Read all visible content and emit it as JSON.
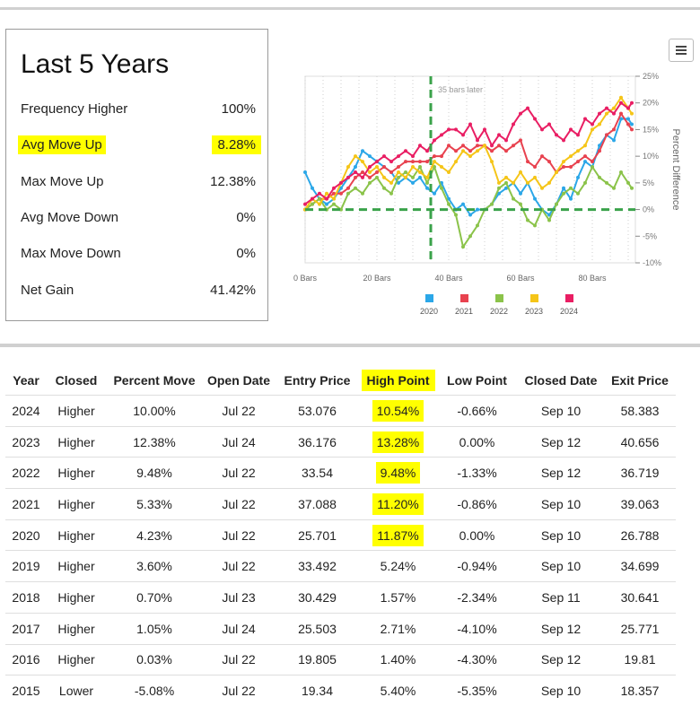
{
  "summary": {
    "title": "Last 5 Years",
    "rows": [
      {
        "label": "Frequency Higher",
        "value": "100%"
      },
      {
        "label": "Avg Move Up",
        "value": "8.28%"
      },
      {
        "label": "Max Move Up",
        "value": "12.38%"
      },
      {
        "label": "Avg Move Down",
        "value": "0%"
      },
      {
        "label": "Max Move Down",
        "value": "0%"
      },
      {
        "label": "Net Gain",
        "value": "41.42%"
      }
    ]
  },
  "menu": {
    "icon": "hamburger-menu-icon"
  },
  "chart_data": {
    "type": "line",
    "annotation": "35 bars later",
    "annotation_x": 35,
    "x_ticks": [
      {
        "v": 0,
        "label": "0 Bars"
      },
      {
        "v": 20,
        "label": "20 Bars"
      },
      {
        "v": 40,
        "label": "40 Bars"
      },
      {
        "v": 60,
        "label": "60 Bars"
      },
      {
        "v": 80,
        "label": "80 Bars"
      }
    ],
    "y_ticks": [
      {
        "v": 25,
        "label": "25%"
      },
      {
        "v": 20,
        "label": "20%"
      },
      {
        "v": 15,
        "label": "15%"
      },
      {
        "v": 10,
        "label": "10%"
      },
      {
        "v": 5,
        "label": "5%"
      },
      {
        "v": 0,
        "label": "0%"
      },
      {
        "v": -5,
        "label": "-5%"
      },
      {
        "v": -10,
        "label": "-10%"
      }
    ],
    "xlim": [
      0,
      92
    ],
    "ylim": [
      -10,
      25
    ],
    "ylabel": "Percent Difference",
    "grid": true,
    "legend_position": "bottom",
    "series": [
      {
        "name": "2020",
        "color": "#2ba7e8",
        "x": [
          0,
          2,
          4,
          6,
          8,
          10,
          12,
          14,
          16,
          18,
          20,
          22,
          24,
          26,
          28,
          30,
          32,
          34,
          36,
          38,
          40,
          42,
          44,
          46,
          48,
          50,
          52,
          54,
          56,
          58,
          60,
          62,
          64,
          66,
          68,
          70,
          72,
          74,
          76,
          78,
          80,
          82,
          84,
          86,
          88,
          90,
          91
        ],
        "y": [
          7,
          4,
          2,
          1,
          2,
          4,
          6,
          8,
          11,
          10,
          9,
          8,
          7,
          5,
          6,
          5,
          6,
          4,
          3,
          5,
          2,
          0,
          1,
          -1,
          0,
          0,
          1,
          3,
          4,
          5,
          3,
          5,
          2,
          0,
          -1,
          1,
          4,
          2,
          6,
          9,
          8,
          12,
          14,
          13,
          17,
          17,
          16
        ]
      },
      {
        "name": "2021",
        "color": "#e8424f",
        "x": [
          0,
          2,
          4,
          6,
          8,
          10,
          12,
          14,
          16,
          18,
          20,
          22,
          24,
          26,
          28,
          30,
          32,
          34,
          36,
          38,
          40,
          42,
          44,
          46,
          48,
          50,
          52,
          54,
          56,
          58,
          60,
          62,
          64,
          66,
          68,
          70,
          72,
          74,
          76,
          78,
          80,
          82,
          84,
          86,
          88,
          90,
          91
        ],
        "y": [
          0,
          1,
          2,
          2,
          3,
          3,
          4,
          6,
          7,
          6,
          7,
          8,
          7,
          8,
          9,
          9,
          9,
          9,
          10,
          10,
          12,
          11,
          12,
          11,
          12,
          12,
          11,
          12,
          11,
          12,
          13,
          9,
          8,
          10,
          9,
          7,
          8,
          8,
          9,
          10,
          9,
          11,
          14,
          15,
          18,
          16,
          15
        ]
      },
      {
        "name": "2022",
        "color": "#8bc34a",
        "x": [
          0,
          2,
          4,
          6,
          8,
          10,
          12,
          14,
          16,
          18,
          20,
          22,
          24,
          26,
          28,
          30,
          32,
          34,
          36,
          38,
          40,
          42,
          44,
          46,
          48,
          50,
          52,
          54,
          56,
          58,
          60,
          62,
          64,
          66,
          68,
          70,
          72,
          74,
          76,
          78,
          80,
          82,
          84,
          86,
          88,
          90,
          91
        ],
        "y": [
          0,
          1,
          2,
          0,
          1,
          0,
          3,
          4,
          3,
          5,
          6,
          4,
          3,
          6,
          7,
          6,
          8,
          5,
          8,
          4,
          1,
          -1,
          -7,
          -5,
          -3,
          0,
          1,
          4,
          5,
          2,
          1,
          -2,
          -3,
          0,
          -2,
          1,
          3,
          4,
          3,
          5,
          8,
          6,
          5,
          4,
          7,
          5,
          4
        ]
      },
      {
        "name": "2023",
        "color": "#f5c518",
        "x": [
          0,
          2,
          4,
          6,
          8,
          10,
          12,
          14,
          16,
          18,
          20,
          22,
          24,
          26,
          28,
          30,
          32,
          34,
          36,
          38,
          40,
          42,
          44,
          46,
          48,
          50,
          52,
          54,
          56,
          58,
          60,
          62,
          64,
          66,
          68,
          70,
          72,
          74,
          76,
          78,
          80,
          82,
          84,
          86,
          88,
          90,
          91
        ],
        "y": [
          0,
          2,
          1,
          3,
          2,
          5,
          8,
          10,
          9,
          7,
          8,
          6,
          5,
          7,
          6,
          8,
          7,
          6,
          9,
          8,
          7,
          9,
          11,
          10,
          11,
          12,
          9,
          5,
          6,
          5,
          7,
          5,
          6,
          4,
          5,
          7,
          9,
          10,
          11,
          12,
          15,
          16,
          18,
          19,
          21,
          19,
          18
        ]
      },
      {
        "name": "2024",
        "color": "#e91e63",
        "x": [
          0,
          2,
          4,
          6,
          8,
          10,
          12,
          14,
          16,
          18,
          20,
          22,
          24,
          26,
          28,
          30,
          32,
          34,
          36,
          38,
          40,
          42,
          44,
          46,
          48,
          50,
          52,
          54,
          56,
          58,
          60,
          62,
          64,
          66,
          68,
          70,
          72,
          74,
          76,
          78,
          80,
          82,
          84,
          86,
          88,
          90,
          91
        ],
        "y": [
          1,
          2,
          3,
          2,
          4,
          5,
          6,
          7,
          6,
          8,
          9,
          10,
          9,
          10,
          11,
          10,
          12,
          11,
          13,
          14,
          15,
          15,
          14,
          16,
          13,
          15,
          12,
          14,
          13,
          16,
          18,
          19,
          17,
          15,
          16,
          14,
          13,
          15,
          14,
          17,
          16,
          18,
          19,
          18,
          20,
          19,
          20
        ]
      }
    ]
  },
  "table": {
    "columns": [
      "Year",
      "Closed",
      "Percent Move",
      "Open Date",
      "Entry Price",
      "High Point",
      "Low Point",
      "Closed Date",
      "Exit Price"
    ],
    "rows": [
      {
        "year": "2024",
        "closed": "Higher",
        "move": "10.00%",
        "move_sign": "pos",
        "open": "Jul 22",
        "entry": "53.076",
        "high": "10.54%",
        "high_hl": true,
        "low": "-0.66%",
        "closed_date": "Sep 10",
        "exit": "58.383"
      },
      {
        "year": "2023",
        "closed": "Higher",
        "move": "12.38%",
        "move_sign": "pos",
        "open": "Jul 24",
        "entry": "36.176",
        "high": "13.28%",
        "high_hl": true,
        "low": "0.00%",
        "closed_date": "Sep 12",
        "exit": "40.656"
      },
      {
        "year": "2022",
        "closed": "Higher",
        "move": "9.48%",
        "move_sign": "pos",
        "open": "Jul 22",
        "entry": "33.54",
        "high": "9.48%",
        "high_hl": true,
        "low": "-1.33%",
        "closed_date": "Sep 12",
        "exit": "36.719"
      },
      {
        "year": "2021",
        "closed": "Higher",
        "move": "5.33%",
        "move_sign": "pos",
        "open": "Jul 22",
        "entry": "37.088",
        "high": "11.20%",
        "high_hl": true,
        "low": "-0.86%",
        "closed_date": "Sep 10",
        "exit": "39.063"
      },
      {
        "year": "2020",
        "closed": "Higher",
        "move": "4.23%",
        "move_sign": "pos",
        "open": "Jul 22",
        "entry": "25.701",
        "high": "11.87%",
        "high_hl": true,
        "low": "0.00%",
        "closed_date": "Sep 10",
        "exit": "26.788"
      },
      {
        "year": "2019",
        "closed": "Higher",
        "move": "3.60%",
        "move_sign": "pos",
        "open": "Jul 22",
        "entry": "33.492",
        "high": "5.24%",
        "high_hl": false,
        "low": "-0.94%",
        "closed_date": "Sep 10",
        "exit": "34.699"
      },
      {
        "year": "2018",
        "closed": "Higher",
        "move": "0.70%",
        "move_sign": "pos",
        "open": "Jul 23",
        "entry": "30.429",
        "high": "1.57%",
        "high_hl": false,
        "low": "-2.34%",
        "closed_date": "Sep 11",
        "exit": "30.641"
      },
      {
        "year": "2017",
        "closed": "Higher",
        "move": "1.05%",
        "move_sign": "pos",
        "open": "Jul 24",
        "entry": "25.503",
        "high": "2.71%",
        "high_hl": false,
        "low": "-4.10%",
        "closed_date": "Sep 12",
        "exit": "25.771"
      },
      {
        "year": "2016",
        "closed": "Higher",
        "move": "0.03%",
        "move_sign": "pos",
        "open": "Jul 22",
        "entry": "19.805",
        "high": "1.40%",
        "high_hl": false,
        "low": "-4.30%",
        "closed_date": "Sep 12",
        "exit": "19.81"
      },
      {
        "year": "2015",
        "closed": "Lower",
        "move": "-5.08%",
        "move_sign": "neg",
        "open": "Jul 22",
        "entry": "19.34",
        "high": "5.40%",
        "high_hl": false,
        "low": "-5.35%",
        "closed_date": "Sep 10",
        "exit": "18.357"
      }
    ]
  },
  "colors": {
    "highlight": "#ffff00",
    "positive": "#3aa24a",
    "negative": "#e03030",
    "guide": "#3aa24a"
  }
}
